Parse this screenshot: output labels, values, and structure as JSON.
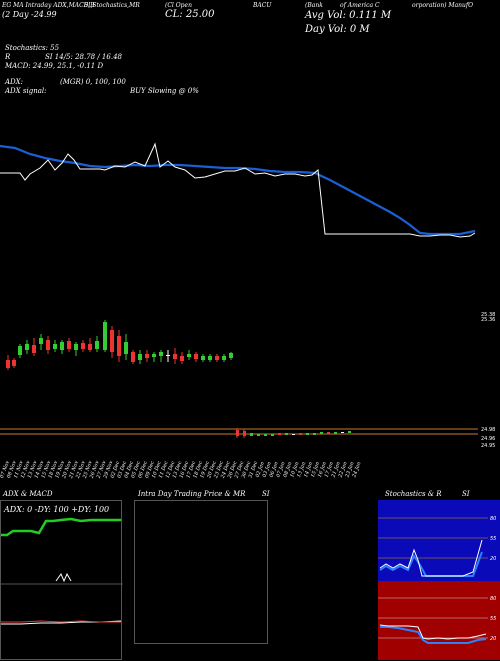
{
  "header": {
    "h1": "EG MA Intraday ADX,MACD,B",
    "h2": "SI,Stochastics,MR",
    "h3": "(Cl Open",
    "h4": "BACU",
    "h5": "(Bank",
    "h6": "of America C",
    "h7": "orporation) ManufO",
    "day": "(2 Day  -24.99",
    "cl": "CL: 25.00",
    "avg_vol": "Avg Vol: 0.111  M",
    "day_vol": "Day Vol: 0   M"
  },
  "indicators": {
    "stoch_label": "Stochastics: 55",
    "r_label": "R",
    "si_label": "SI 14/5: 28.78  / 16.48",
    "macd_label": "MACD: 24.99, 25.1, -0.11 D",
    "adx_label": "ADX:",
    "adx_mid": "(MGR) 0, 100, 100",
    "adx_signal": "ADX  signal:",
    "buy_label": "BUY Slowing @ 0%"
  },
  "price_labels": {
    "right_1": "25.38",
    "right_1b": "25.36",
    "right_2": "24.98",
    "right_3": "24.96",
    "right_4": "24.95"
  },
  "dates": [
    "07 Nov",
    "08 Nov",
    "11 Nov",
    "12 Nov",
    "13 Nov",
    "14 Nov",
    "15 Nov",
    "18 Nov",
    "19 Nov",
    "20 Nov",
    "21 Nov",
    "22 Nov",
    "25 Nov",
    "26 Nov",
    "27 Nov",
    "29 Nov",
    "02 Dec",
    "03 Dec",
    "04 Dec",
    "05 Dec",
    "06 Dec",
    "09 Dec",
    "10 Dec",
    "11 Dec",
    "12 Dec",
    "13 Dec",
    "16 Dec",
    "17 Dec",
    "18 Dec",
    "19 Dec",
    "20 Dec",
    "23 Dec",
    "24 Dec",
    "26 Dec",
    "27 Dec",
    "30 Dec",
    "31 Dec",
    "02 Jan",
    "03 Jan",
    "06 Jan",
    "07 Jan",
    "08 Jan",
    "10 Jan",
    "13 Jan",
    "14 Jan",
    "15 Jan",
    "16 Jan",
    "17 Jan",
    "21 Jan",
    "22 Jan",
    "23 Jan",
    "24 Jan"
  ],
  "panels": {
    "adx_title": "ADX  & MACD",
    "adx_values": "ADX: 0  -DY: 100  +DY: 100",
    "intra_title": "Intra  Day Trading Price  & MR",
    "intra_si": "SI",
    "stoch_title": "Stochastics & R",
    "stoch_si": "SI",
    "stoch_ticks": [
      "80",
      "55",
      "20"
    ],
    "rsi_ticks": [
      "80",
      "55",
      "20"
    ]
  },
  "chart_data": {
    "type": "line",
    "title": "",
    "series": [
      {
        "values": [
          65,
          65,
          62,
          66,
          64,
          67,
          66,
          68,
          66,
          69,
          70,
          70,
          70,
          69,
          69,
          70,
          68,
          70,
          68,
          70,
          69,
          68,
          67,
          64,
          65,
          64,
          65,
          64,
          66,
          66,
          67,
          66,
          69,
          69,
          70,
          70,
          70,
          70,
          70,
          70,
          70,
          70,
          70,
          70,
          70,
          70,
          70,
          70,
          70,
          70,
          70,
          70
        ]
      },
      {
        "values": [
          62,
          62,
          66,
          65,
          69,
          66,
          70,
          69,
          65,
          71,
          78,
          71,
          74,
          72,
          70,
          72,
          74,
          70,
          70,
          70,
          69,
          69,
          72,
          72,
          71,
          71,
          73,
          73,
          72,
          72,
          72,
          73,
          70,
          71,
          71,
          71,
          71,
          70,
          70,
          70,
          71,
          71,
          71,
          71,
          71,
          72,
          72,
          72,
          72,
          71,
          71,
          71
        ]
      }
    ],
    "ylim": [
      0,
      100
    ]
  }
}
